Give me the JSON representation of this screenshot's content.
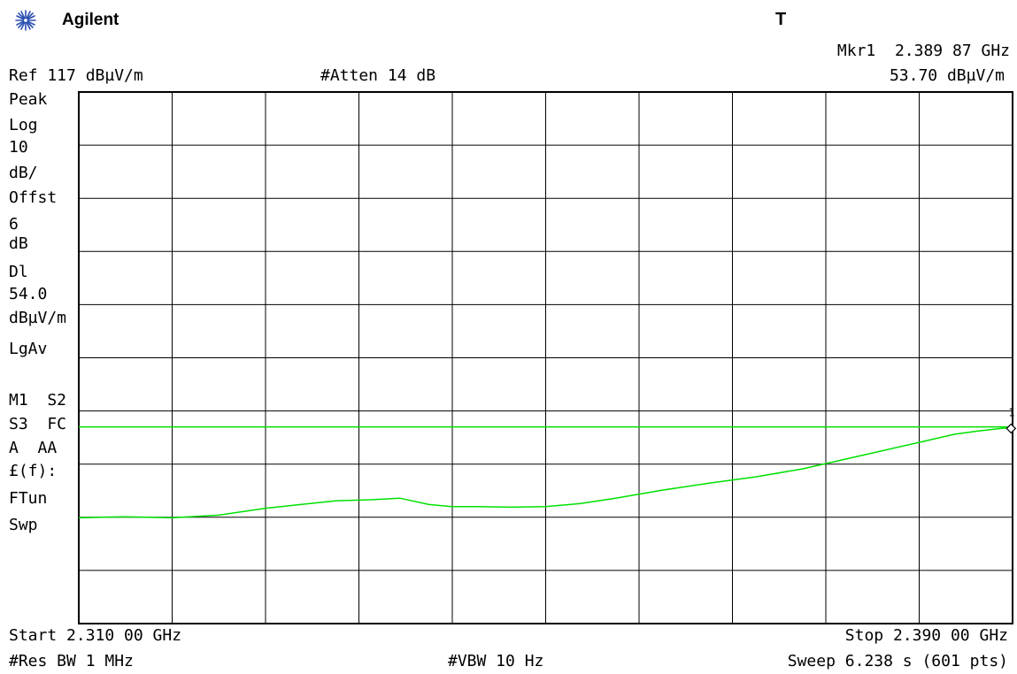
{
  "header": {
    "brand": "Agilent",
    "trigger_flag": "T",
    "marker_readout_freq": "Mkr1  2.389 87 GHz",
    "marker_readout_level": "53.70 dBµV/m",
    "ref_level": "Ref 117 dBµV/m",
    "attenuation": "#Atten 14 dB"
  },
  "left_panel": {
    "lines": [
      "Peak",
      "Log",
      "10",
      "dB/",
      "Offst",
      "6",
      "dB",
      "Dl",
      "54.0",
      "dBµV/m",
      "LgAv",
      "M1  S2",
      "S3  FC",
      "A  AA",
      "£(f):",
      "FTun",
      "Swp"
    ]
  },
  "footer": {
    "start": "Start 2.310 00 GHz",
    "stop": "Stop 2.390 00 GHz",
    "res_bw": "#Res BW 1 MHz",
    "vbw": "#VBW 10 Hz",
    "sweep": "Sweep 6.238 s (601 pts)"
  },
  "marker": {
    "label": "1"
  },
  "colors": {
    "trace": "#00e000",
    "grid": "#000000",
    "background": "#ffffff"
  },
  "chart_data": {
    "type": "line",
    "x_unit": "GHz",
    "y_unit": "dBµV/m",
    "xlim": [
      2.31,
      2.39
    ],
    "ylim": [
      17,
      117
    ],
    "y_divisions": 10,
    "x_divisions": 10,
    "grid": true,
    "display_line": 54.0,
    "series": [
      {
        "x": [
          2.31,
          2.314,
          2.318,
          2.322,
          2.326,
          2.329,
          2.332,
          2.335,
          2.3375,
          2.34,
          2.342,
          2.344,
          2.347,
          2.35,
          2.353,
          2.356,
          2.36,
          2.364,
          2.368,
          2.372,
          2.374,
          2.378,
          2.382,
          2.385,
          2.387,
          2.389,
          2.39
        ],
        "y": [
          36.9,
          37.1,
          36.9,
          37.4,
          38.7,
          39.4,
          40.1,
          40.3,
          40.6,
          39.4,
          39.0,
          39.0,
          38.9,
          39.0,
          39.6,
          40.6,
          42.1,
          43.4,
          44.6,
          46.1,
          47.1,
          49.1,
          51.1,
          52.6,
          53.2,
          53.7,
          53.9
        ]
      }
    ],
    "marker": {
      "x": 2.38987,
      "y": 53.7
    }
  }
}
